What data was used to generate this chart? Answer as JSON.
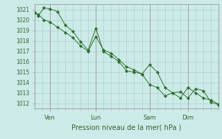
{
  "title": "Pression niveau de la mer( hPa )",
  "ylabel_values": [
    1012,
    1013,
    1014,
    1015,
    1016,
    1017,
    1018,
    1019,
    1020,
    1021
  ],
  "ylim": [
    1011.5,
    1021.5
  ],
  "background_color": "#cceae7",
  "grid_color": "#aad4d0",
  "line_color": "#2d6e2d",
  "marker_color": "#2d6e2d",
  "tick_label_color": "#336633",
  "axis_color": "#888888",
  "xlabel_color": "#336633",
  "day_labels": [
    "Ven",
    "Lun",
    "Sam",
    "Dim"
  ],
  "day_positions": [
    8,
    32,
    60,
    80
  ],
  "xlim": [
    0,
    96
  ],
  "line1_x": [
    0,
    2,
    5,
    8,
    12,
    16,
    20,
    24,
    28,
    32,
    36,
    40,
    44,
    48,
    52,
    56,
    60,
    64,
    68,
    72,
    76,
    80,
    84,
    88,
    92,
    96
  ],
  "line1_y": [
    1020.7,
    1020.5,
    1020.0,
    1019.8,
    1019.3,
    1018.8,
    1018.3,
    1017.5,
    1017.0,
    1018.4,
    1017.1,
    1016.8,
    1016.2,
    1015.5,
    1015.2,
    1014.8,
    1015.7,
    1015.0,
    1013.5,
    1013.0,
    1013.1,
    1012.5,
    1013.4,
    1013.2,
    1012.1,
    1011.85
  ],
  "line2_x": [
    0,
    2,
    5,
    8,
    12,
    16,
    20,
    24,
    28,
    32,
    36,
    40,
    44,
    48,
    52,
    56,
    60,
    64,
    68,
    72,
    76,
    80,
    84,
    88,
    92,
    96
  ],
  "line2_y": [
    1020.7,
    1020.4,
    1021.15,
    1021.05,
    1020.8,
    1019.5,
    1018.9,
    1017.9,
    1017.1,
    1019.2,
    1016.95,
    1016.5,
    1016.0,
    1015.1,
    1015.0,
    1014.8,
    1013.8,
    1013.5,
    1012.7,
    1013.0,
    1012.5,
    1013.5,
    1013.0,
    1012.5,
    1012.3,
    1011.9
  ],
  "minor_grid_x": [
    0,
    4,
    8,
    12,
    16,
    20,
    24,
    28,
    32,
    36,
    40,
    44,
    48,
    52,
    56,
    60,
    64,
    68,
    72,
    76,
    80,
    84,
    88,
    92,
    96
  ]
}
